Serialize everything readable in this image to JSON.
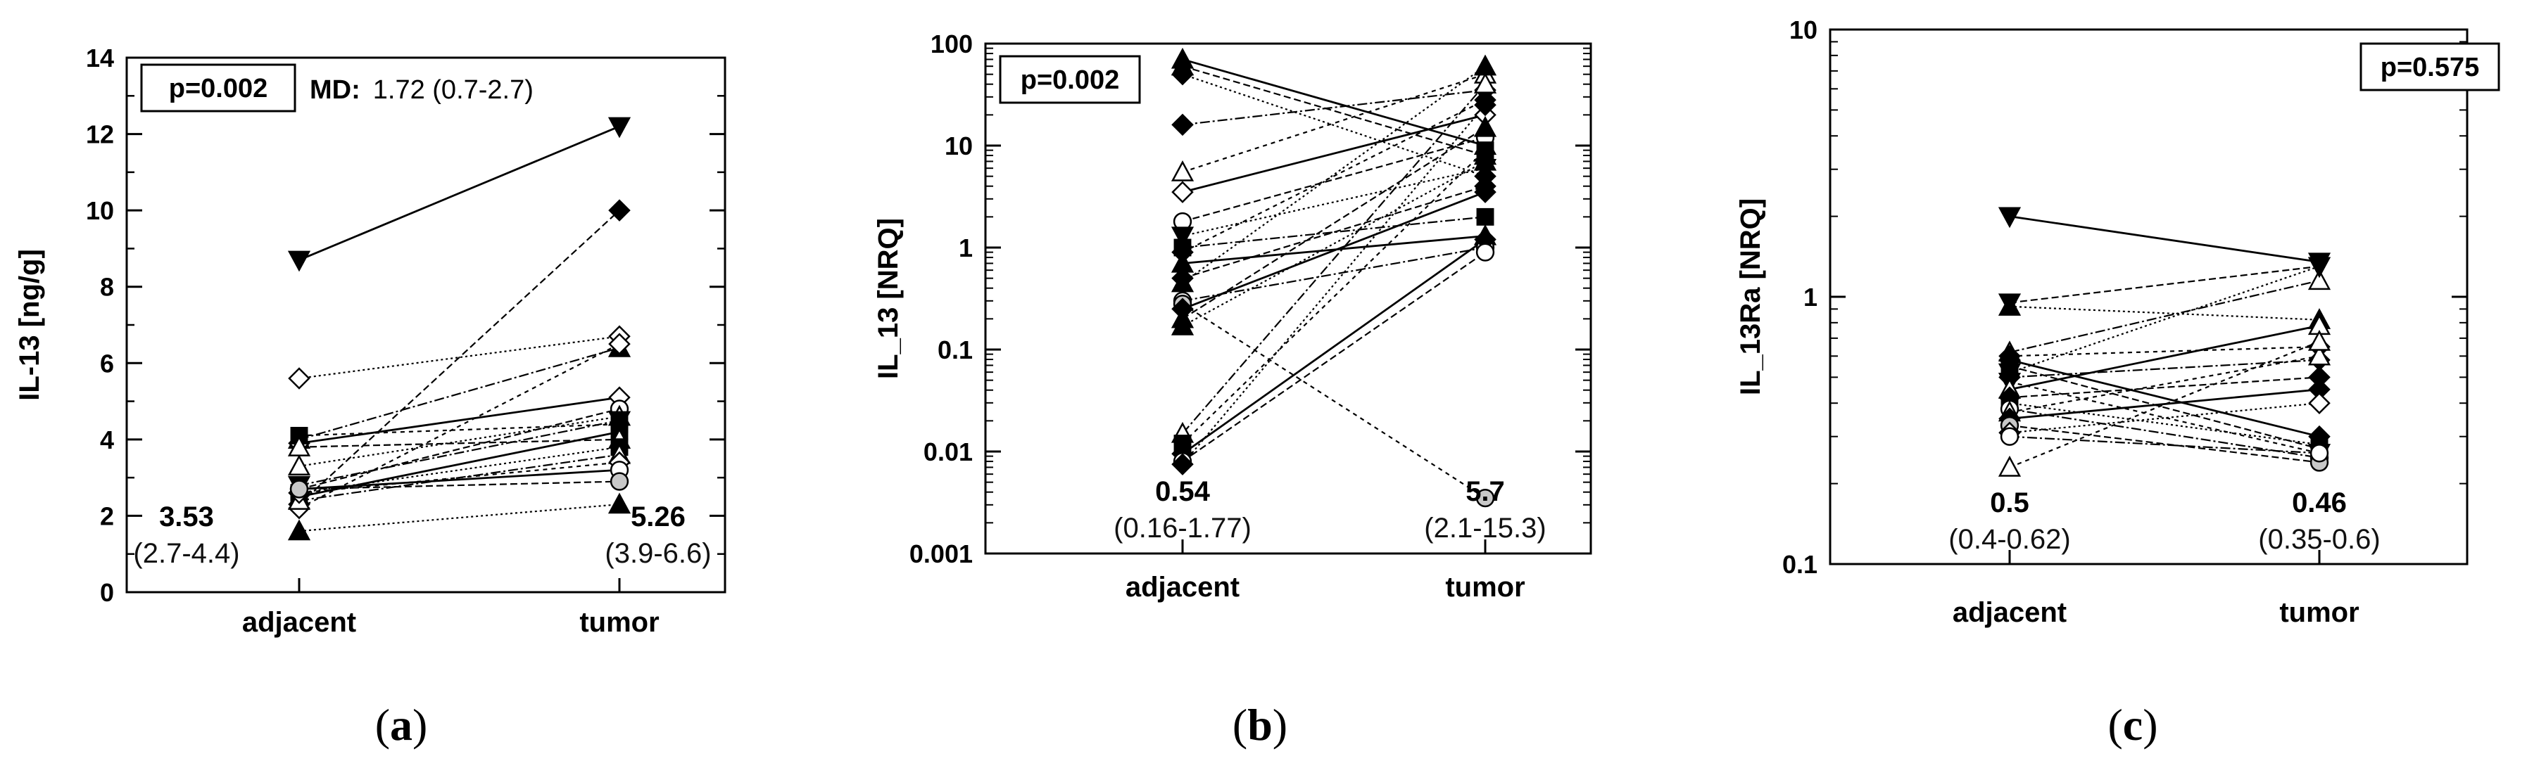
{
  "chart_data": [
    {
      "type": "line",
      "panel": "a",
      "caption": {
        "open": "(",
        "letter": "a",
        "close": ")"
      },
      "ylabel": "IL-13 [ng/g]",
      "yscale": "linear",
      "ylim": [
        0,
        14
      ],
      "yticks": [
        0,
        2,
        4,
        6,
        8,
        10,
        12,
        14
      ],
      "ytick_labels": [
        "0",
        "2",
        "4",
        "6",
        "8",
        "10",
        "12",
        "14"
      ],
      "categories": [
        "adjacent",
        "tumor"
      ],
      "p_text": "p=0.002",
      "md_label": "MD:",
      "md_value": "1.72 (0.7-2.7)",
      "stats": [
        {
          "median": "3.53",
          "range": "(2.7-4.4)"
        },
        {
          "median": "5.26",
          "range": "(3.9-6.6)"
        }
      ],
      "pairs": [
        {
          "adjacent": 8.7,
          "tumor": 12.2,
          "marker": "tri-down"
        },
        {
          "adjacent": 2.3,
          "tumor": 10.0,
          "marker": "diamond"
        },
        {
          "adjacent": 5.6,
          "tumor": 6.7,
          "marker": "diamond-open"
        },
        {
          "adjacent": 4.0,
          "tumor": 6.4,
          "marker": "tri-up"
        },
        {
          "adjacent": 2.2,
          "tumor": 6.5,
          "marker": "diamond-open"
        },
        {
          "adjacent": 3.9,
          "tumor": 5.1,
          "marker": "diamond-open"
        },
        {
          "adjacent": 2.7,
          "tumor": 4.8,
          "marker": "circle-open"
        },
        {
          "adjacent": 3.3,
          "tumor": 4.6,
          "marker": "tri-up-open"
        },
        {
          "adjacent": 2.8,
          "tumor": 4.5,
          "marker": "tri-down"
        },
        {
          "adjacent": 4.1,
          "tumor": 4.4,
          "marker": "square"
        },
        {
          "adjacent": 2.5,
          "tumor": 4.2,
          "marker": "square"
        },
        {
          "adjacent": 3.8,
          "tumor": 4.0,
          "marker": "tri-up-open"
        },
        {
          "adjacent": 2.6,
          "tumor": 3.8,
          "marker": "square"
        },
        {
          "adjacent": 2.4,
          "tumor": 3.6,
          "marker": "tri-up-open"
        },
        {
          "adjacent": 2.6,
          "tumor": 3.4,
          "marker": "diamond-open"
        },
        {
          "adjacent": 2.7,
          "tumor": 3.2,
          "marker": "circle-open"
        },
        {
          "adjacent": 2.7,
          "tumor": 2.9,
          "marker": "circle-gray"
        },
        {
          "adjacent": 1.6,
          "tumor": 2.3,
          "marker": "tri-up"
        }
      ]
    },
    {
      "type": "line",
      "panel": "b",
      "caption": {
        "open": "(",
        "letter": "b",
        "close": ")"
      },
      "ylabel": "IL_13 [NRQ]",
      "yscale": "log",
      "ylim": [
        0.001,
        100
      ],
      "yticks": [
        0.001,
        0.01,
        0.1,
        1,
        10,
        100
      ],
      "ytick_labels": [
        "0.001",
        "0.01",
        "0.1",
        "1",
        "10",
        "100"
      ],
      "categories": [
        "adjacent",
        "tumor"
      ],
      "p_text": "p=0.002",
      "stats": [
        {
          "median": "0.54",
          "range": "(0.16-1.77)"
        },
        {
          "median": "5.7",
          "range": "(2.1-15.3)"
        }
      ],
      "pairs": [
        {
          "adjacent": 70,
          "tumor": 10,
          "marker": "tri-up"
        },
        {
          "adjacent": 60,
          "tumor": 8,
          "marker": "tri-up"
        },
        {
          "adjacent": 50,
          "tumor": 5,
          "marker": "diamond"
        },
        {
          "adjacent": 16,
          "tumor": 35,
          "marker": "diamond"
        },
        {
          "adjacent": 5.5,
          "tumor": 50,
          "marker": "tri-up-open"
        },
        {
          "adjacent": 3.5,
          "tumor": 20,
          "marker": "diamond-open"
        },
        {
          "adjacent": 1.8,
          "tumor": 12,
          "marker": "circle-open"
        },
        {
          "adjacent": 1.3,
          "tumor": 6,
          "marker": "tri-down"
        },
        {
          "adjacent": 1.0,
          "tumor": 2.0,
          "marker": "square"
        },
        {
          "adjacent": 0.9,
          "tumor": 28,
          "marker": "diamond"
        },
        {
          "adjacent": 0.7,
          "tumor": 1.3,
          "marker": "tri-up"
        },
        {
          "adjacent": 0.5,
          "tumor": 4,
          "marker": "diamond"
        },
        {
          "adjacent": 0.45,
          "tumor": 60,
          "marker": "tri-up"
        },
        {
          "adjacent": 0.3,
          "tumor": 1.0,
          "marker": "circle-open"
        },
        {
          "adjacent": 0.28,
          "tumor": 0.0035,
          "marker": "circle-gray"
        },
        {
          "adjacent": 0.25,
          "tumor": 3.5,
          "marker": "diamond"
        },
        {
          "adjacent": 0.2,
          "tumor": 15,
          "marker": "tri-up"
        },
        {
          "adjacent": 0.17,
          "tumor": 7,
          "marker": "tri-up"
        },
        {
          "adjacent": 0.015,
          "tumor": 40,
          "marker": "tri-up-open"
        },
        {
          "adjacent": 0.012,
          "tumor": 9,
          "marker": "square"
        },
        {
          "adjacent": 0.0095,
          "tumor": 1.2,
          "marker": "diamond"
        },
        {
          "adjacent": 0.008,
          "tumor": 0.9,
          "marker": "circle-open"
        },
        {
          "adjacent": 0.0075,
          "tumor": 25,
          "marker": "diamond"
        }
      ]
    },
    {
      "type": "line",
      "panel": "c",
      "caption": {
        "open": "(",
        "letter": "c",
        "close": ")"
      },
      "ylabel": "IL_13Ra [NRQ]",
      "yscale": "log",
      "ylim": [
        0.1,
        10
      ],
      "yticks": [
        0.1,
        1,
        10
      ],
      "ytick_labels": [
        "0.1",
        "1",
        "10"
      ],
      "categories": [
        "adjacent",
        "tumor"
      ],
      "p_text": "p=0.575",
      "stats": [
        {
          "median": "0.5",
          "range": "(0.4-0.62)"
        },
        {
          "median": "0.46",
          "range": "(0.35-0.6)"
        }
      ],
      "pairs": [
        {
          "adjacent": 2.0,
          "tumor": 1.35,
          "marker": "tri-down"
        },
        {
          "adjacent": 0.95,
          "tumor": 1.3,
          "marker": "tri-down"
        },
        {
          "adjacent": 0.92,
          "tumor": 0.82,
          "marker": "tri-up"
        },
        {
          "adjacent": 0.62,
          "tumor": 1.15,
          "marker": "tri-up-open"
        },
        {
          "adjacent": 0.6,
          "tumor": 0.65,
          "marker": "diamond"
        },
        {
          "adjacent": 0.58,
          "tumor": 0.3,
          "marker": "diamond"
        },
        {
          "adjacent": 0.55,
          "tumor": 0.27,
          "marker": "square"
        },
        {
          "adjacent": 0.52,
          "tumor": 1.3,
          "marker": "tri-down"
        },
        {
          "adjacent": 0.5,
          "tumor": 0.58,
          "marker": "diamond"
        },
        {
          "adjacent": 0.48,
          "tumor": 0.26,
          "marker": "tri-down"
        },
        {
          "adjacent": 0.45,
          "tumor": 0.78,
          "marker": "tri-up-open"
        },
        {
          "adjacent": 0.42,
          "tumor": 0.5,
          "marker": "diamond"
        },
        {
          "adjacent": 0.4,
          "tumor": 0.28,
          "marker": "square"
        },
        {
          "adjacent": 0.38,
          "tumor": 0.25,
          "marker": "circle-open"
        },
        {
          "adjacent": 0.37,
          "tumor": 0.6,
          "marker": "tri-up-open"
        },
        {
          "adjacent": 0.35,
          "tumor": 0.45,
          "marker": "diamond"
        },
        {
          "adjacent": 0.33,
          "tumor": 0.24,
          "marker": "circle-gray"
        },
        {
          "adjacent": 0.31,
          "tumor": 0.4,
          "marker": "diamond-open"
        },
        {
          "adjacent": 0.3,
          "tumor": 0.26,
          "marker": "circle-open"
        },
        {
          "adjacent": 0.23,
          "tumor": 0.68,
          "marker": "tri-up-open"
        }
      ]
    }
  ]
}
